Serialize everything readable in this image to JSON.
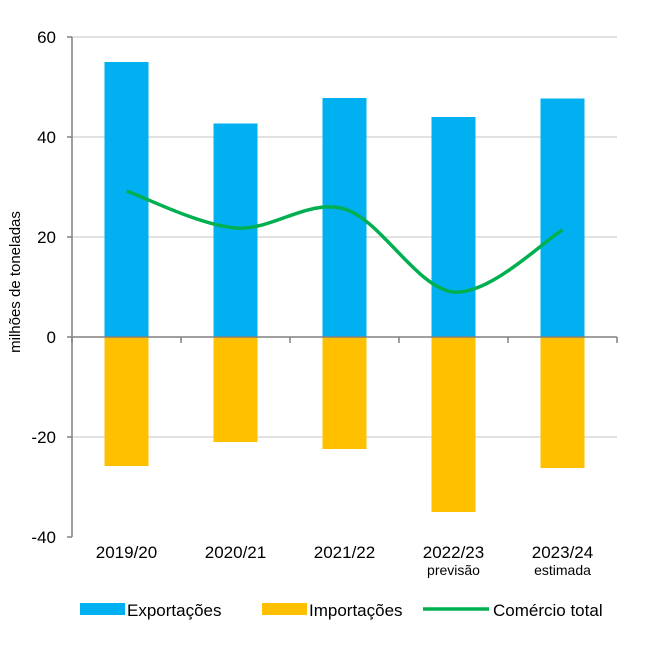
{
  "chart_data": {
    "type": "bar",
    "title": "",
    "xlabel": "",
    "ylabel": "milhões de toneladas",
    "ylim": [
      -40,
      60
    ],
    "yticks": [
      60,
      40,
      20,
      0,
      -20,
      -40
    ],
    "grid": true,
    "legend_position": "bottom",
    "categories": [
      "2019/20",
      "2020/21",
      "2021/22",
      "2022/23",
      "2023/24"
    ],
    "category_notes": [
      "",
      "",
      "",
      "previsão",
      "estimada"
    ],
    "series": [
      {
        "name": "Exportações",
        "type": "bar",
        "color": "#00b0f0",
        "values": [
          55.0,
          42.7,
          47.8,
          44.0,
          47.7
        ]
      },
      {
        "name": "Importações",
        "type": "bar",
        "color": "#ffc000",
        "values": [
          -25.8,
          -21.0,
          -22.4,
          -35.0,
          -26.2
        ]
      },
      {
        "name": "Comércio total",
        "type": "line",
        "color": "#00b050",
        "values": [
          29.2,
          21.8,
          25.6,
          9.0,
          21.4
        ]
      }
    ]
  }
}
